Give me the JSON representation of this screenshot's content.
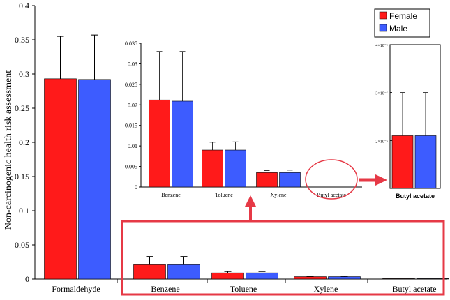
{
  "colors": {
    "female": "#ff1a1a",
    "male": "#3d5cff",
    "highlight": "#e63946",
    "axis": "#000000"
  },
  "legend": {
    "female": "Female",
    "male": "Male"
  },
  "chart_data": [
    {
      "type": "bar",
      "title": "",
      "ylabel": "Non-carcinogenic health risk assessment",
      "xlabel": "",
      "categories": [
        "Formaldehyde",
        "Benzene",
        "Toluene",
        "Xylene",
        "Butyl acetate"
      ],
      "ylim": [
        0,
        0.4
      ],
      "yticks": [
        "0",
        "0.05",
        "0.1",
        "0.15",
        "0.2",
        "0.25",
        "0.3",
        "0.35",
        "0.4"
      ],
      "series": [
        {
          "name": "Female",
          "values": [
            0.293,
            0.021,
            0.009,
            0.0035,
            2.1e-06
          ],
          "errors": [
            0.062,
            0.012,
            0.002,
            0.0005,
            9e-07
          ]
        },
        {
          "name": "Male",
          "values": [
            0.292,
            0.021,
            0.009,
            0.0035,
            2.1e-06
          ],
          "errors": [
            0.065,
            0.012,
            0.002,
            0.0006,
            9e-07
          ]
        }
      ],
      "grid": false,
      "legend_position": "top-right"
    },
    {
      "type": "bar",
      "title": "",
      "categories": [
        "Benzene",
        "Toluene",
        "Xylene",
        "Butyl acetate"
      ],
      "ylim": [
        0,
        0.035
      ],
      "yticks": [
        "0",
        "0.005",
        "0.01",
        "0.015",
        "0.02",
        "0.025",
        "0.03",
        "0.035"
      ],
      "series": [
        {
          "name": "Female",
          "values": [
            0.0212,
            0.009,
            0.0035,
            2.1e-06
          ],
          "errors": [
            0.0118,
            0.0019,
            0.0005,
            9e-07
          ]
        },
        {
          "name": "Male",
          "values": [
            0.0209,
            0.009,
            0.0035,
            2.1e-06
          ],
          "errors": [
            0.0121,
            0.002,
            0.0006,
            9e-07
          ]
        }
      ]
    },
    {
      "type": "bar",
      "title": "",
      "categories": [
        "Butyl acetate"
      ],
      "ylim": [
        1e-06,
        4e-06
      ],
      "yticks": [
        "4×10⁻⁶",
        "3×10⁻⁶",
        "2×10⁻⁶"
      ],
      "series": [
        {
          "name": "Female",
          "values": [
            2.1e-06
          ],
          "errors": [
            9e-07
          ]
        },
        {
          "name": "Male",
          "values": [
            2.1e-06
          ],
          "errors": [
            9e-07
          ]
        }
      ]
    }
  ]
}
